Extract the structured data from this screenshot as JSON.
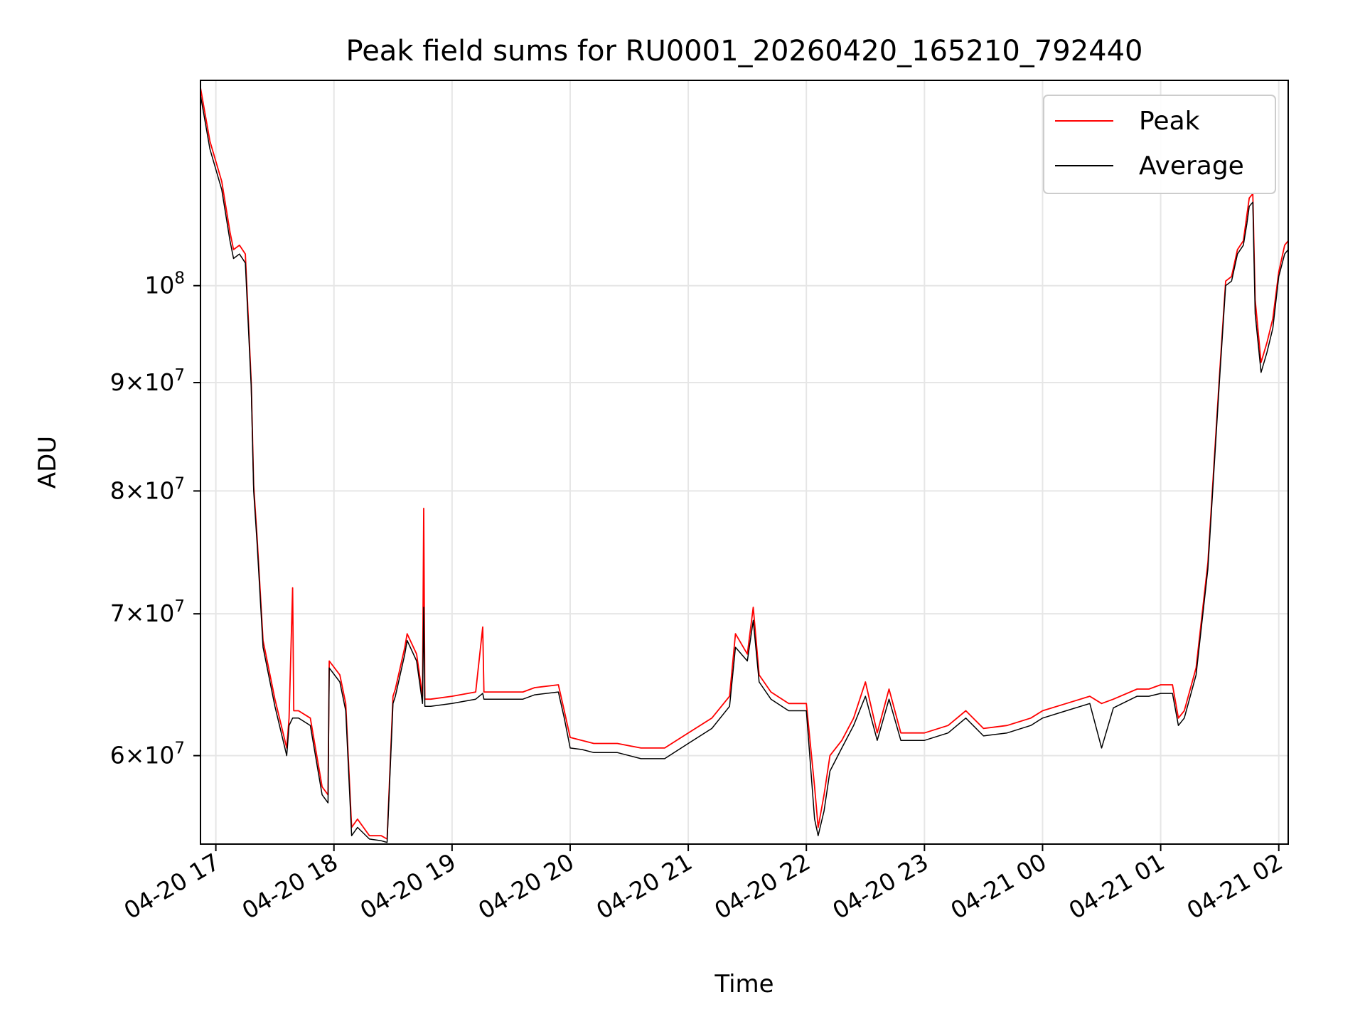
{
  "chart_data": {
    "type": "line",
    "title": "Peak field sums for RU0001_20260420_165210_792440",
    "xlabel": "Time",
    "ylabel": "ADU",
    "yscale": "log",
    "xlim": [
      16.87,
      26.08
    ],
    "ylim": [
      54500000,
      125000000
    ],
    "grid": true,
    "legend_position": "top-right",
    "colors": {
      "peak": "#ff0000",
      "average": "#000000"
    },
    "x_ticks": [
      {
        "value": 17,
        "label": "04-20 17"
      },
      {
        "value": 18,
        "label": "04-20 18"
      },
      {
        "value": 19,
        "label": "04-20 19"
      },
      {
        "value": 20,
        "label": "04-20 20"
      },
      {
        "value": 21,
        "label": "04-20 21"
      },
      {
        "value": 22,
        "label": "04-20 22"
      },
      {
        "value": 23,
        "label": "04-20 23"
      },
      {
        "value": 24,
        "label": "04-21 00"
      },
      {
        "value": 25,
        "label": "04-21 01"
      },
      {
        "value": 26,
        "label": "04-21 02"
      }
    ],
    "y_ticks": [
      {
        "value": 60000000,
        "mant": "6",
        "exp": "7"
      },
      {
        "value": 70000000,
        "mant": "7",
        "exp": "7"
      },
      {
        "value": 80000000,
        "mant": "8",
        "exp": "7"
      },
      {
        "value": 90000000,
        "mant": "9",
        "exp": "7"
      },
      {
        "value": 100000000,
        "mant": "",
        "exp": "8"
      }
    ],
    "series": [
      {
        "name": "Peak",
        "color": "#ff0000",
        "x": [
          16.87,
          16.95,
          17.05,
          17.12,
          17.15,
          17.2,
          17.25,
          17.3,
          17.32,
          17.35,
          17.4,
          17.5,
          17.6,
          17.62,
          17.65,
          17.66,
          17.7,
          17.8,
          17.9,
          17.95,
          17.96,
          18.05,
          18.1,
          18.15,
          18.2,
          18.3,
          18.4,
          18.45,
          18.5,
          18.52,
          18.6,
          18.62,
          18.7,
          18.75,
          18.76,
          18.77,
          18.8,
          18.82,
          19.0,
          19.2,
          19.26,
          19.27,
          19.4,
          19.6,
          19.7,
          19.9,
          19.95,
          20.0,
          20.1,
          20.2,
          20.4,
          20.6,
          20.8,
          21.0,
          21.2,
          21.35,
          21.4,
          21.5,
          21.55,
          21.6,
          21.7,
          21.85,
          22.0,
          22.07,
          22.1,
          22.15,
          22.2,
          22.3,
          22.4,
          22.5,
          22.6,
          22.7,
          22.8,
          23.0,
          23.2,
          23.35,
          23.5,
          23.7,
          23.9,
          24.0,
          24.2,
          24.4,
          24.5,
          24.6,
          24.8,
          24.9,
          25.0,
          25.1,
          25.15,
          25.2,
          25.3,
          25.4,
          25.5,
          25.55,
          25.6,
          25.65,
          25.7,
          25.73,
          25.75,
          25.78,
          25.8,
          25.85,
          25.9,
          25.95,
          26.0,
          26.05,
          26.08
        ],
        "values": [
          124000000,
          117000000,
          112000000,
          106000000,
          104000000,
          104500000,
          103500000,
          90000000,
          80500000,
          76000000,
          68000000,
          63800000,
          60500000,
          62500000,
          72000000,
          63000000,
          63000000,
          62500000,
          58000000,
          57500000,
          66500000,
          65500000,
          63500000,
          55500000,
          56000000,
          55000000,
          55000000,
          54800000,
          64000000,
          64500000,
          67500000,
          68500000,
          67000000,
          64000000,
          78500000,
          63800000,
          63800000,
          63800000,
          64000000,
          64300000,
          69000000,
          64300000,
          64300000,
          64300000,
          64600000,
          64800000,
          63000000,
          61200000,
          61000000,
          60800000,
          60800000,
          60500000,
          60500000,
          61500000,
          62500000,
          64000000,
          68500000,
          67000000,
          70500000,
          65500000,
          64300000,
          63500000,
          63500000,
          58000000,
          55500000,
          57500000,
          60000000,
          61000000,
          62500000,
          65000000,
          61500000,
          64500000,
          61500000,
          61500000,
          62000000,
          63000000,
          61800000,
          62000000,
          62500000,
          63000000,
          63500000,
          64000000,
          63500000,
          63800000,
          64500000,
          64500000,
          64800000,
          64800000,
          62500000,
          63000000,
          66000000,
          74000000,
          91000000,
          100500000,
          101000000,
          104000000,
          105000000,
          108000000,
          110000000,
          110500000,
          98500000,
          92000000,
          94000000,
          96500000,
          101500000,
          104500000,
          105000000
        ]
      },
      {
        "name": "Average",
        "color": "#000000",
        "x": [
          16.87,
          16.95,
          17.05,
          17.12,
          17.15,
          17.2,
          17.25,
          17.3,
          17.32,
          17.35,
          17.4,
          17.5,
          17.6,
          17.62,
          17.65,
          17.66,
          17.7,
          17.8,
          17.9,
          17.95,
          17.96,
          18.05,
          18.1,
          18.15,
          18.2,
          18.3,
          18.4,
          18.45,
          18.5,
          18.52,
          18.6,
          18.62,
          18.7,
          18.75,
          18.76,
          18.77,
          18.8,
          18.82,
          19.0,
          19.2,
          19.26,
          19.27,
          19.4,
          19.6,
          19.7,
          19.9,
          19.95,
          20.0,
          20.1,
          20.2,
          20.4,
          20.6,
          20.8,
          21.0,
          21.2,
          21.35,
          21.4,
          21.5,
          21.55,
          21.6,
          21.7,
          21.85,
          22.0,
          22.07,
          22.1,
          22.15,
          22.2,
          22.3,
          22.4,
          22.5,
          22.6,
          22.7,
          22.8,
          23.0,
          23.2,
          23.35,
          23.5,
          23.7,
          23.9,
          24.0,
          24.2,
          24.4,
          24.5,
          24.6,
          24.8,
          24.9,
          25.0,
          25.1,
          25.15,
          25.2,
          25.3,
          25.4,
          25.5,
          25.55,
          25.6,
          25.65,
          25.7,
          25.73,
          25.75,
          25.78,
          25.8,
          25.85,
          25.9,
          25.95,
          26.0,
          26.05,
          26.08
        ],
        "values": [
          123000000,
          116000000,
          111000000,
          105000000,
          103000000,
          103500000,
          102500000,
          89500000,
          80000000,
          75500000,
          67500000,
          63300000,
          60000000,
          62000000,
          62500000,
          62500000,
          62500000,
          62000000,
          57500000,
          57000000,
          66000000,
          65000000,
          63000000,
          55000000,
          55500000,
          54800000,
          54700000,
          54600000,
          63500000,
          64000000,
          67000000,
          68000000,
          66500000,
          63500000,
          70500000,
          63300000,
          63300000,
          63300000,
          63500000,
          63800000,
          64200000,
          63800000,
          63800000,
          63800000,
          64100000,
          64300000,
          62500000,
          60500000,
          60400000,
          60200000,
          60200000,
          59800000,
          59800000,
          60800000,
          61800000,
          63300000,
          67500000,
          66500000,
          69500000,
          65000000,
          63800000,
          63000000,
          63000000,
          56000000,
          55000000,
          56500000,
          59000000,
          60500000,
          62000000,
          64000000,
          61000000,
          63800000,
          61000000,
          61000000,
          61500000,
          62500000,
          61300000,
          61500000,
          62000000,
          62500000,
          63000000,
          63500000,
          60500000,
          63200000,
          64000000,
          64000000,
          64200000,
          64200000,
          62000000,
          62500000,
          65500000,
          73500000,
          90500000,
          100000000,
          100500000,
          103500000,
          104500000,
          107000000,
          109000000,
          109500000,
          97000000,
          91000000,
          93000000,
          95500000,
          101000000,
          103500000,
          104000000
        ]
      }
    ]
  }
}
